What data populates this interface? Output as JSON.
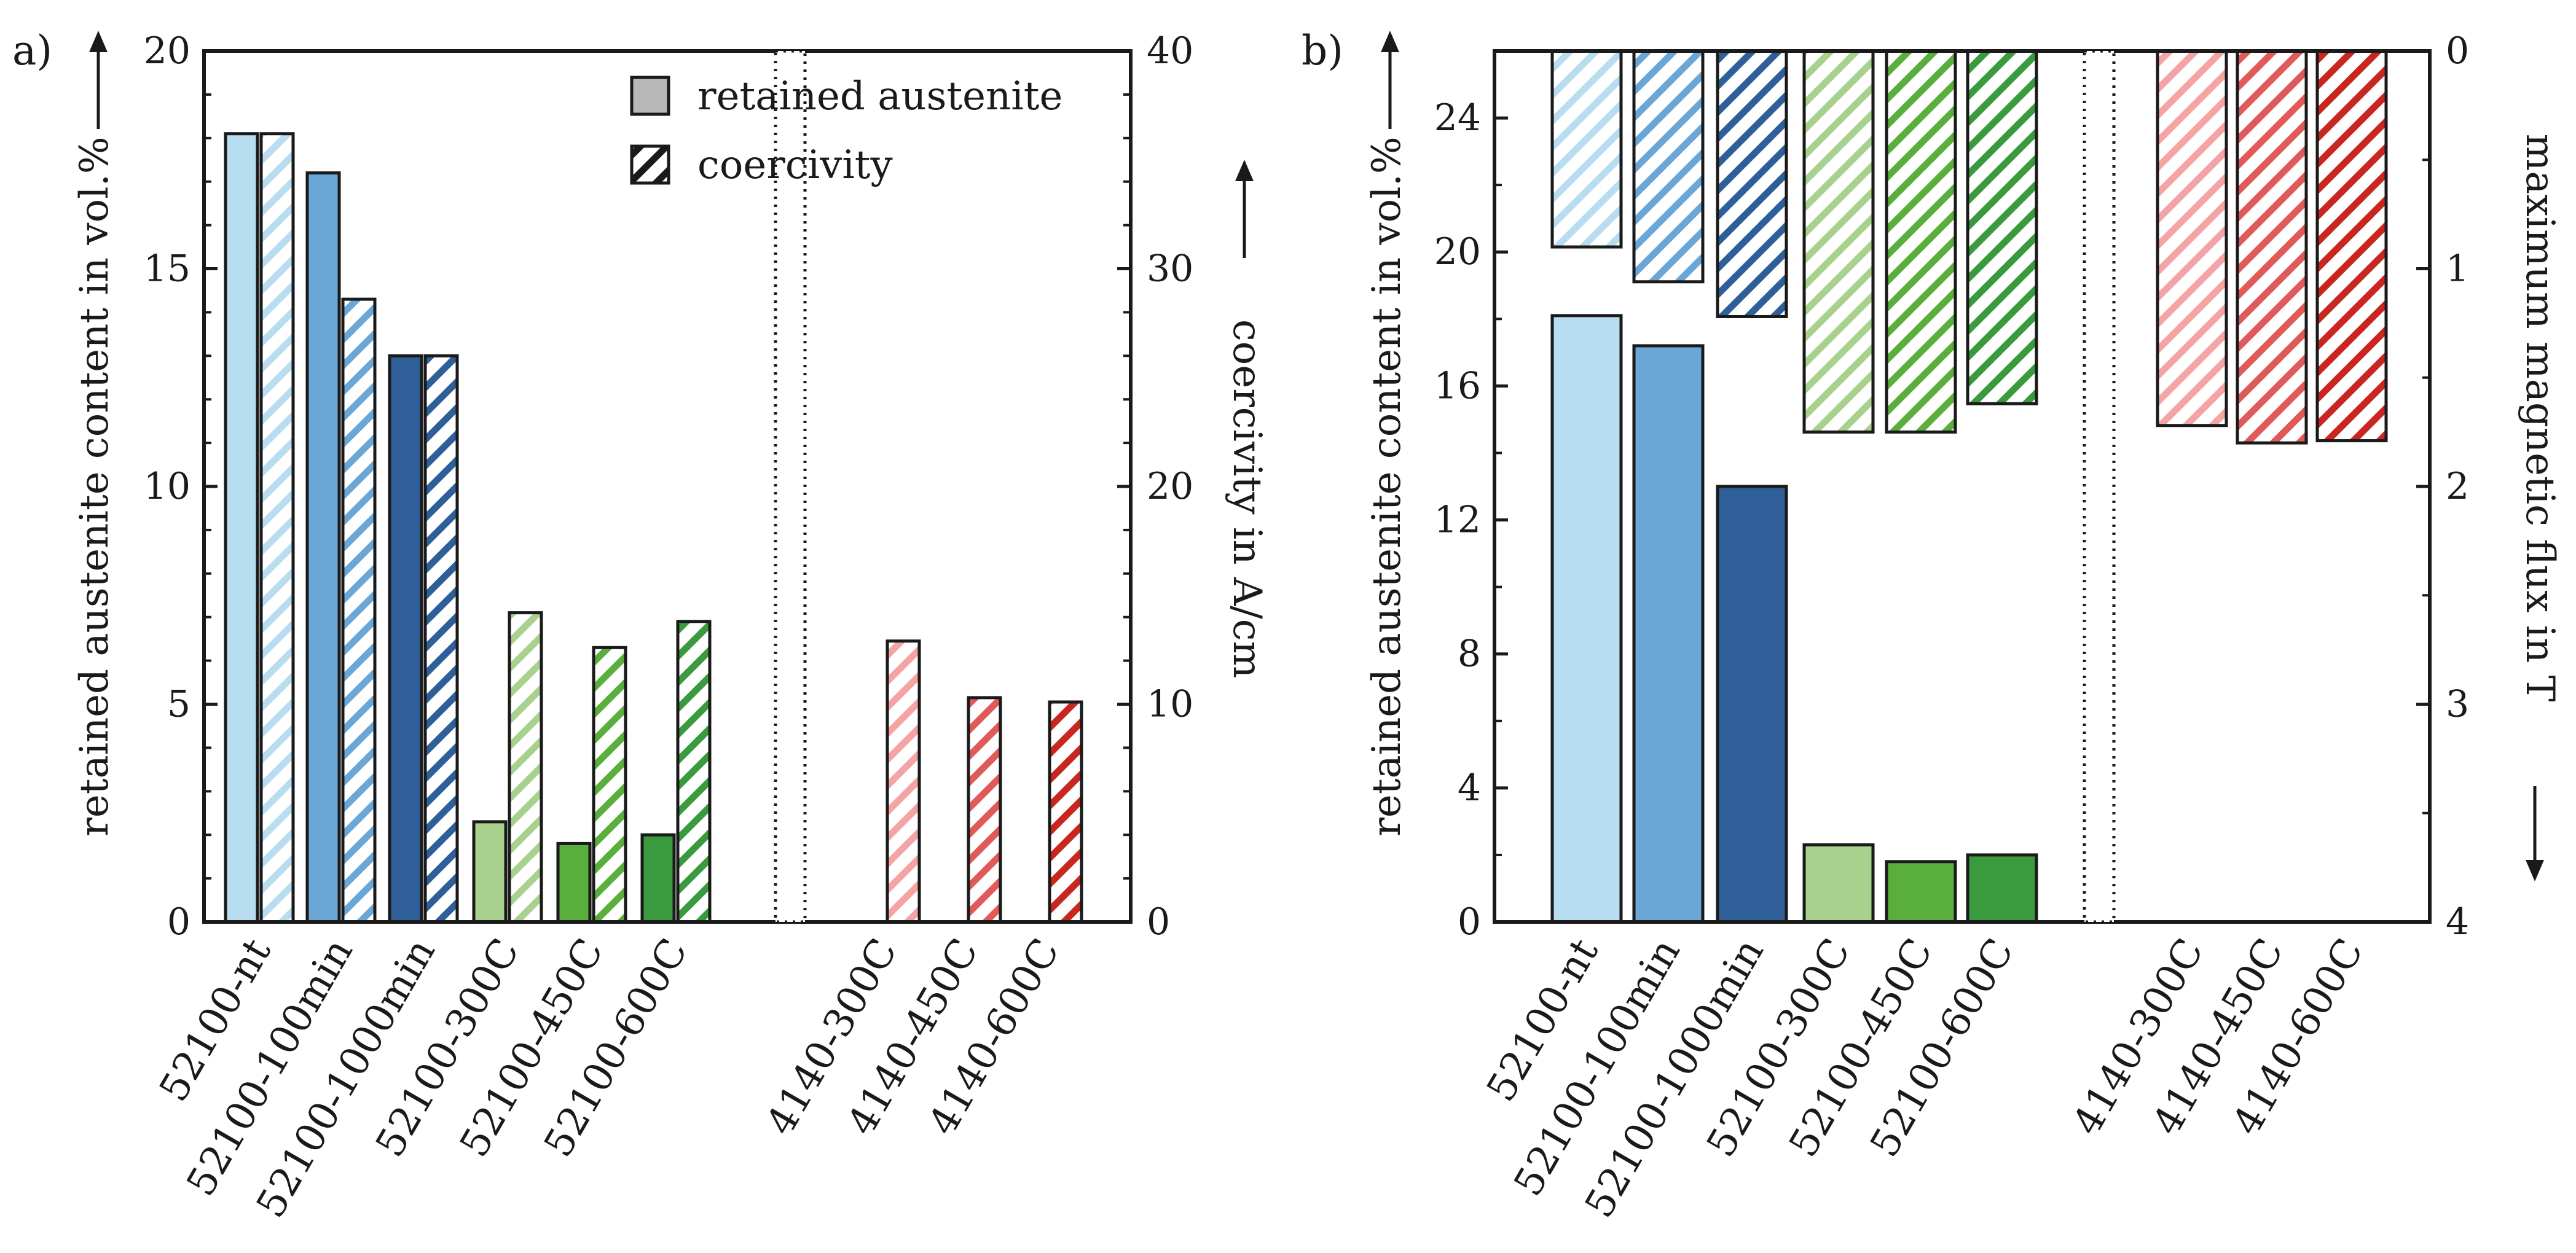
{
  "colors": {
    "52100-nt": "#b8dcf0",
    "52100-100min": "#6aa6d6",
    "52100-1000min": "#2f5f98",
    "52100-300C": "#a9d18e",
    "52100-450C": "#5aae3c",
    "52100-600C": "#3a9a3e",
    "4140-300C": "#f4a4a4",
    "4140-450C": "#e05a5a",
    "4140-600C": "#c8261e",
    "legend_solid": "#b8b8b8",
    "outline": "#1a1a1a"
  },
  "chart_data": [
    {
      "type": "bar",
      "panel_label": "a)",
      "categories": [
        "52100-nt",
        "52100-100min",
        "52100-1000min",
        "52100-300C",
        "52100-450C",
        "52100-600C",
        "4140-300C",
        "4140-450C",
        "4140-600C"
      ],
      "legend": {
        "solid": "retained austenite",
        "hatched": "coercivity",
        "position": "top-right"
      },
      "left_axis": {
        "label": "retained austenite content in vol.%",
        "arrow": "↑",
        "ylim": [
          0,
          20
        ],
        "ticks": [
          0,
          5,
          10,
          15,
          20
        ]
      },
      "right_axis": {
        "label": "coercivity in A/cm",
        "arrow": "↑",
        "ylim": [
          0,
          40
        ],
        "ticks": [
          0,
          10,
          20,
          30,
          40
        ]
      },
      "series": [
        {
          "name": "retained austenite",
          "axis": "left",
          "values": [
            18.1,
            17.2,
            13.0,
            2.3,
            1.8,
            2.0,
            null,
            null,
            null
          ]
        },
        {
          "name": "coercivity",
          "axis": "right",
          "values": [
            36.2,
            28.6,
            26.0,
            14.2,
            12.6,
            13.8,
            12.9,
            10.3,
            10.1
          ]
        }
      ]
    },
    {
      "type": "bar",
      "panel_label": "b)",
      "categories": [
        "52100-nt",
        "52100-100min",
        "52100-1000min",
        "52100-300C",
        "52100-450C",
        "52100-600C",
        "4140-300C",
        "4140-450C",
        "4140-600C"
      ],
      "left_axis": {
        "label": "retained austenite content in vol.%",
        "arrow": "↑",
        "ylim": [
          0,
          26
        ],
        "ticks": [
          0,
          4,
          8,
          12,
          16,
          20,
          24
        ]
      },
      "right_axis": {
        "label": "maximum magnetic flux in T",
        "arrow": "↓",
        "ylim": [
          0,
          4
        ],
        "inverted": true,
        "ticks": [
          0,
          1,
          2,
          3,
          4
        ]
      },
      "series": [
        {
          "name": "retained austenite",
          "axis": "left",
          "values": [
            18.1,
            17.2,
            13.0,
            2.3,
            1.8,
            2.0,
            null,
            null,
            null
          ]
        },
        {
          "name": "maximum magnetic flux",
          "axis": "right",
          "values": [
            0.9,
            1.06,
            1.22,
            1.75,
            1.75,
            1.62,
            1.72,
            1.8,
            1.79
          ]
        }
      ]
    }
  ]
}
